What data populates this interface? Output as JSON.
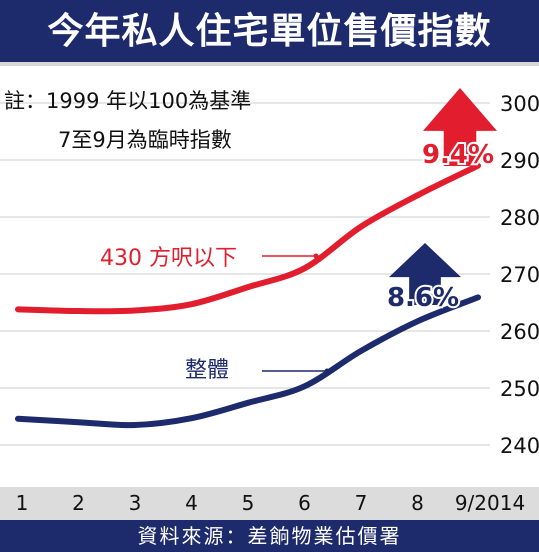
{
  "header": {
    "title": "今年私人住宅單位售價指數"
  },
  "notes": {
    "line1": "註：1999 年以100為基準",
    "line2": "7至9月為臨時指數"
  },
  "footer": {
    "source": "資料來源：差餉物業估價署"
  },
  "chart_data": {
    "type": "line",
    "title": "今年私人住宅單位售價指數",
    "categories": [
      "1",
      "2",
      "3",
      "4",
      "5",
      "6",
      "7",
      "8",
      "9/2014"
    ],
    "ylim": [
      235,
      305
    ],
    "yticks": [
      240,
      250,
      260,
      270,
      280,
      290,
      300
    ],
    "grid": true,
    "series": [
      {
        "name": "430 方呎以下",
        "color": "#e21e2e",
        "values": [
          263.8,
          263.5,
          263.6,
          264.7,
          267.7,
          271.0,
          278.3,
          283.8,
          289.0
        ],
        "change_label": "9.4%"
      },
      {
        "name": "整體",
        "color": "#1d2a6b",
        "values": [
          244.6,
          244.0,
          243.5,
          244.7,
          247.4,
          250.3,
          256.5,
          261.7,
          265.9
        ],
        "change_label": "8.6%"
      }
    ]
  },
  "colors": {
    "red": "#e21e2e",
    "navy": "#1d2a6b",
    "grid": "#cccccc",
    "axis_band": "#dcdcdc"
  }
}
